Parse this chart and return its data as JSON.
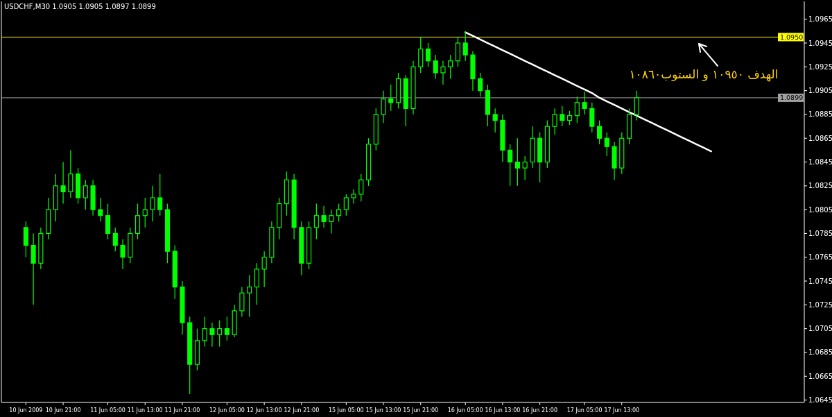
{
  "chart_data": {
    "type": "candlestick",
    "title": "USDCHF,M30  1.0905 1.0905 1.0897 1.0899",
    "color": "#00ff00",
    "categories": [
      "10 Jun 2009",
      null,
      null,
      null,
      null,
      "10 Jun 21:00",
      null,
      null,
      null,
      null,
      null,
      "11 Jun 05:00",
      null,
      null,
      null,
      null,
      "11 Jun 13:00",
      null,
      null,
      null,
      null,
      "11 Jun 21:00",
      null,
      null,
      null,
      null,
      null,
      "12 Jun 05:00",
      null,
      null,
      null,
      null,
      "12 Jun 13:00",
      null,
      null,
      null,
      null,
      "12 Jun 21:00",
      null,
      null,
      null,
      null,
      null,
      "15 Jun 05:00",
      null,
      null,
      null,
      null,
      "15 Jun 13:00",
      null,
      null,
      null,
      null,
      "15 Jun 21:00",
      null,
      null,
      null,
      null,
      null,
      "16 Jun 05:00",
      null,
      null,
      null,
      null,
      "16 Jun 13:00",
      null,
      null,
      null,
      null,
      "16 Jun 21:00",
      null,
      null,
      null,
      null,
      null,
      "17 Jun 05:00",
      null,
      null,
      null,
      null,
      "17 Jun 13:00",
      null,
      null,
      null,
      null,
      null,
      null,
      null,
      null,
      null,
      null,
      null,
      null,
      null,
      null,
      null,
      null,
      null,
      null,
      null,
      null,
      null,
      null,
      null,
      null
    ],
    "ohlc": [
      [
        1.079,
        1.0795,
        1.0765,
        1.0775
      ],
      [
        1.0775,
        1.0785,
        1.0725,
        1.076
      ],
      [
        1.076,
        1.079,
        1.0755,
        1.0785
      ],
      [
        1.0785,
        1.0815,
        1.078,
        1.0805
      ],
      [
        1.0805,
        1.0835,
        1.0795,
        1.0825
      ],
      [
        1.0825,
        1.0845,
        1.081,
        1.082
      ],
      [
        1.082,
        1.0855,
        1.0815,
        1.0835
      ],
      [
        1.0835,
        1.084,
        1.081,
        1.0815
      ],
      [
        1.0815,
        1.083,
        1.0805,
        1.0825
      ],
      [
        1.0825,
        1.083,
        1.08,
        1.0805
      ],
      [
        1.0805,
        1.0815,
        1.0795,
        1.08
      ],
      [
        1.08,
        1.081,
        1.078,
        1.0785
      ],
      [
        1.0785,
        1.079,
        1.077,
        1.0775
      ],
      [
        1.0775,
        1.078,
        1.0755,
        1.0765
      ],
      [
        1.0765,
        1.079,
        1.076,
        1.0785
      ],
      [
        1.0785,
        1.081,
        1.078,
        1.08
      ],
      [
        1.08,
        1.0815,
        1.079,
        1.0805
      ],
      [
        1.0805,
        1.0825,
        1.0795,
        1.0815
      ],
      [
        1.0815,
        1.0835,
        1.08,
        1.0805
      ],
      [
        1.0805,
        1.081,
        1.076,
        1.077
      ],
      [
        1.077,
        1.0775,
        1.073,
        1.074
      ],
      [
        1.074,
        1.0745,
        1.07,
        1.071
      ],
      [
        1.071,
        1.0715,
        1.065,
        1.0675
      ],
      [
        1.0675,
        1.0705,
        1.067,
        1.0695
      ],
      [
        1.0695,
        1.0715,
        1.069,
        1.0705
      ],
      [
        1.0705,
        1.071,
        1.069,
        1.07
      ],
      [
        1.07,
        1.0712,
        1.069,
        1.0705
      ],
      [
        1.0705,
        1.0715,
        1.0695,
        1.07
      ],
      [
        1.07,
        1.0725,
        1.0698,
        1.072
      ],
      [
        1.072,
        1.074,
        1.0715,
        1.0735
      ],
      [
        1.0735,
        1.075,
        1.0715,
        1.074
      ],
      [
        1.074,
        1.076,
        1.0725,
        1.0755
      ],
      [
        1.0755,
        1.077,
        1.074,
        1.0765
      ],
      [
        1.0765,
        1.0795,
        1.076,
        1.079
      ],
      [
        1.079,
        1.0815,
        1.078,
        1.081
      ],
      [
        1.081,
        1.0837,
        1.08,
        1.083
      ],
      [
        1.083,
        1.0835,
        1.078,
        1.079
      ],
      [
        1.079,
        1.0795,
        1.075,
        1.076
      ],
      [
        1.076,
        1.0795,
        1.0755,
        1.079
      ],
      [
        1.079,
        1.081,
        1.078,
        1.08
      ],
      [
        1.08,
        1.0808,
        1.079,
        1.0795
      ],
      [
        1.0795,
        1.0805,
        1.0785,
        1.08
      ],
      [
        1.08,
        1.081,
        1.0795,
        1.0805
      ],
      [
        1.0805,
        1.0818,
        1.08,
        1.0815
      ],
      [
        1.0815,
        1.0822,
        1.081,
        1.0818
      ],
      [
        1.0818,
        1.0835,
        1.0812,
        1.083
      ],
      [
        1.083,
        1.0865,
        1.0825,
        1.086
      ],
      [
        1.086,
        1.089,
        1.0855,
        1.0885
      ],
      [
        1.0885,
        1.0905,
        1.0878,
        1.0898
      ],
      [
        1.0898,
        1.091,
        1.0888,
        1.0895
      ],
      [
        1.0895,
        1.092,
        1.089,
        1.0915
      ],
      [
        1.0915,
        1.0918,
        1.0875,
        1.089
      ],
      [
        1.089,
        1.093,
        1.0885,
        1.0925
      ],
      [
        1.0925,
        1.095,
        1.092,
        1.094
      ],
      [
        1.094,
        1.0945,
        1.0925,
        1.093
      ],
      [
        1.093,
        1.0935,
        1.0915,
        1.092
      ],
      [
        1.092,
        1.093,
        1.091,
        1.0925
      ],
      [
        1.0925,
        1.0935,
        1.0915,
        1.093
      ],
      [
        1.093,
        1.095,
        1.0925,
        1.0945
      ],
      [
        1.0945,
        1.0955,
        1.093,
        1.0935
      ],
      [
        1.0935,
        1.0938,
        1.0905,
        1.0915
      ],
      [
        1.0915,
        1.092,
        1.09,
        1.0905
      ],
      [
        1.0905,
        1.091,
        1.0875,
        1.0885
      ],
      [
        1.0885,
        1.089,
        1.087,
        1.088
      ],
      [
        1.088,
        1.0885,
        1.0845,
        1.0855
      ],
      [
        1.0855,
        1.086,
        1.0825,
        1.0845
      ],
      [
        1.0845,
        1.0865,
        1.0825,
        1.084
      ],
      [
        1.084,
        1.085,
        1.083,
        1.0845
      ],
      [
        1.0845,
        1.0875,
        1.084,
        1.0865
      ],
      [
        1.0865,
        1.087,
        1.0828,
        1.0845
      ],
      [
        1.0845,
        1.088,
        1.084,
        1.0875
      ],
      [
        1.0875,
        1.089,
        1.0868,
        1.0885
      ],
      [
        1.0885,
        1.0892,
        1.0875,
        1.088
      ],
      [
        1.088,
        1.0888,
        1.0876,
        1.0884
      ],
      [
        1.0884,
        1.09,
        1.0878,
        1.0895
      ],
      [
        1.0895,
        1.0904,
        1.0885,
        1.089
      ],
      [
        1.089,
        1.0895,
        1.087,
        1.0875
      ],
      [
        1.0875,
        1.088,
        1.086,
        1.0865
      ],
      [
        1.0865,
        1.087,
        1.085,
        1.0858
      ],
      [
        1.0858,
        1.0862,
        1.083,
        1.084
      ],
      [
        1.084,
        1.087,
        1.0835,
        1.0865
      ],
      [
        1.0865,
        1.089,
        1.086,
        1.0885
      ],
      [
        1.0885,
        1.0905,
        1.088,
        1.0899
      ],
      null,
      null,
      null,
      null,
      null,
      null,
      null,
      null,
      null,
      null,
      null,
      null,
      null,
      null,
      null,
      null,
      null,
      null,
      null,
      null,
      null,
      null
    ],
    "series": [
      {
        "type": "line",
        "color": "#ffffff",
        "values": [
          null,
          null,
          null,
          null,
          null,
          null,
          null,
          null,
          null,
          null,
          null,
          null,
          null,
          null,
          null,
          null,
          null,
          null,
          null,
          null,
          null,
          null,
          null,
          null,
          null,
          null,
          null,
          null,
          null,
          null,
          null,
          null,
          null,
          null,
          null,
          null,
          null,
          null,
          null,
          null,
          null,
          null,
          null,
          null,
          null,
          null,
          null,
          null,
          null,
          null,
          null,
          null,
          null,
          null,
          null,
          null,
          null,
          null,
          null,
          1.0954,
          1.0951,
          1.0948,
          1.0945,
          1.0942,
          1.0939,
          1.0936,
          1.0933,
          1.093,
          1.0927,
          1.0924,
          1.0921,
          1.0918,
          1.0915,
          1.0912,
          1.0909,
          1.0906,
          1.0903,
          1.0899,
          1.0896,
          1.0893,
          1.089,
          1.0887,
          1.0884,
          1.0881,
          1.0878,
          1.0875,
          1.0872,
          1.0869,
          1.0866,
          1.0863,
          1.086,
          1.0857,
          1.0854,
          null,
          null,
          null,
          null,
          null,
          null,
          null,
          null,
          null,
          null,
          null,
          null
        ]
      }
    ],
    "ylim": [
      1.0643,
      1.098
    ],
    "yticks": [
      1.0645,
      1.0665,
      1.0685,
      1.0705,
      1.0725,
      1.0745,
      1.0765,
      1.0785,
      1.0805,
      1.0825,
      1.0845,
      1.0865,
      1.0885,
      1.0905,
      1.0925,
      1.0945,
      1.0965
    ],
    "ref_lines": [
      {
        "axis": "y",
        "value": 1.095,
        "label": "1.0950",
        "color": "#ffff00"
      },
      {
        "axis": "y",
        "value": 1.0899,
        "label": "1.0899",
        "color": "#a0a0a0"
      }
    ],
    "annotations": [
      "الهدف ١٠٩٥٠ و الستوب١٠٨٦٠"
    ]
  }
}
